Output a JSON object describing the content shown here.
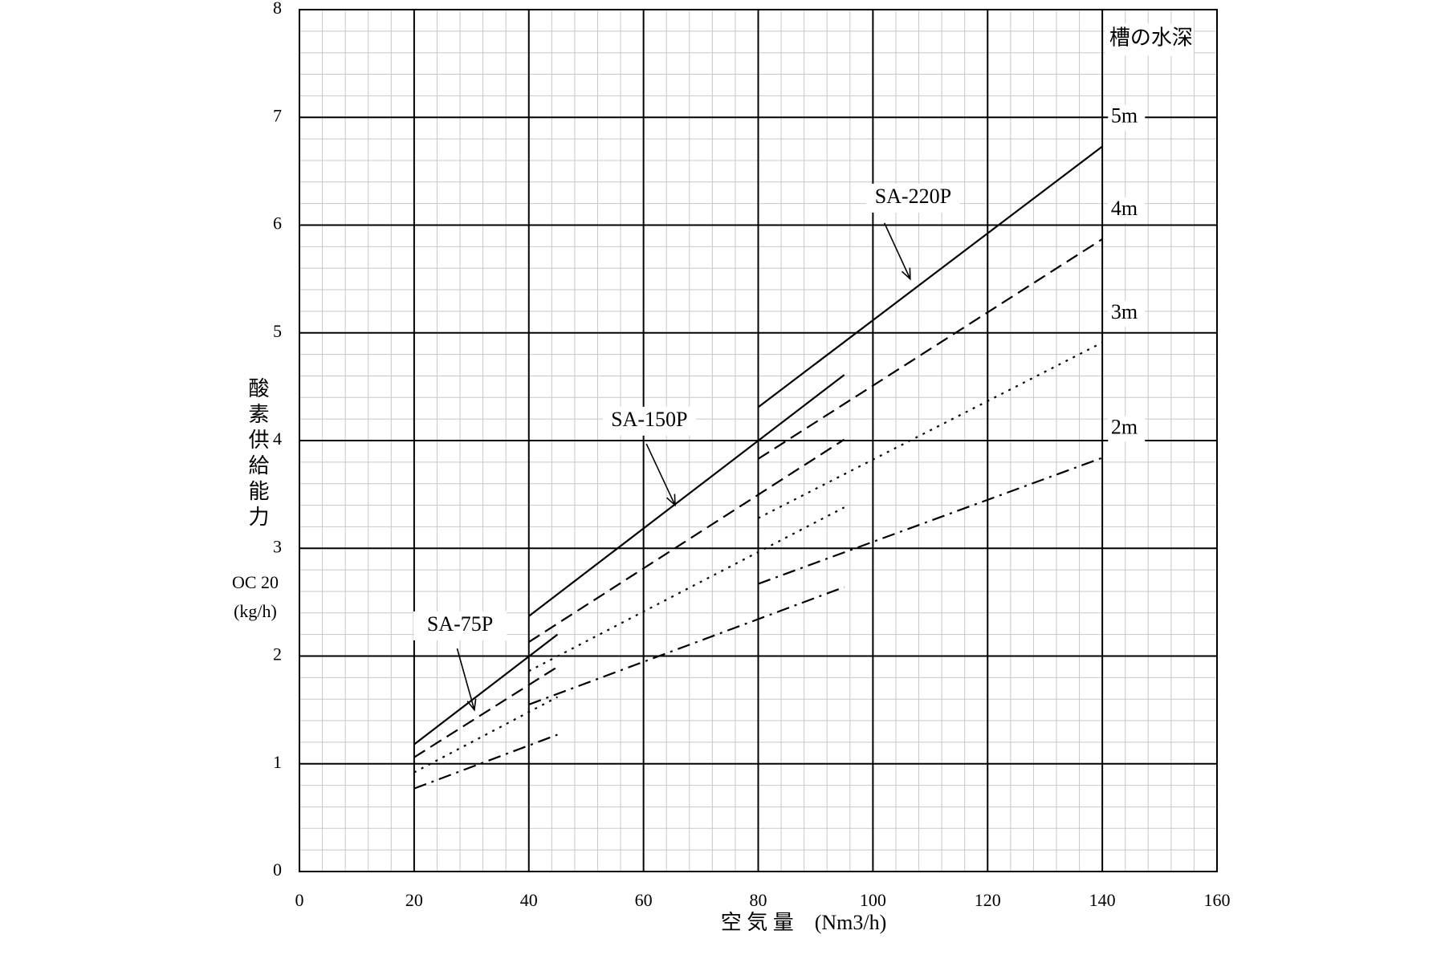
{
  "chart_data": {
    "type": "line",
    "xlabel": "空 気 量　(Nm3/h)",
    "ylabel": "酸素供給能力",
    "ylabel_sub": [
      "OC 20",
      "(kg/h)"
    ],
    "legend_title": "槽の水深",
    "xlim": [
      0,
      160
    ],
    "xticks": [
      0,
      20,
      40,
      60,
      80,
      100,
      120,
      140,
      160
    ],
    "ylim": [
      0,
      8
    ],
    "yticks": [
      0,
      1,
      2,
      3,
      4,
      5,
      6,
      7,
      8
    ],
    "grid": true,
    "xminor": 4,
    "yminor": 0.2,
    "series": [
      {
        "name": "5m",
        "dash": "solid",
        "segments": [
          {
            "x": [
              20,
              45
            ],
            "values": [
              1.18,
              2.2
            ]
          },
          {
            "x": [
              40,
              95
            ],
            "values": [
              2.37,
              4.61
            ]
          },
          {
            "x": [
              80,
              140
            ],
            "values": [
              4.31,
              6.73
            ]
          }
        ]
      },
      {
        "name": "4m",
        "dash": "dashed",
        "segments": [
          {
            "x": [
              20,
              45
            ],
            "values": [
              1.06,
              1.9
            ]
          },
          {
            "x": [
              40,
              95
            ],
            "values": [
              2.13,
              4.01
            ]
          },
          {
            "x": [
              80,
              140
            ],
            "values": [
              3.83,
              5.87
            ]
          }
        ]
      },
      {
        "name": "3m",
        "dash": "dotted",
        "segments": [
          {
            "x": [
              20,
              45
            ],
            "values": [
              0.92,
              1.62
            ]
          },
          {
            "x": [
              40,
              95
            ],
            "values": [
              1.86,
              3.38
            ]
          },
          {
            "x": [
              80,
              140
            ],
            "values": [
              3.28,
              4.91
            ]
          }
        ]
      },
      {
        "name": "2m",
        "dash": "dashdot",
        "segments": [
          {
            "x": [
              20,
              45
            ],
            "values": [
              0.77,
              1.27
            ]
          },
          {
            "x": [
              40,
              95
            ],
            "values": [
              1.55,
              2.64
            ]
          },
          {
            "x": [
              80,
              140
            ],
            "values": [
              2.67,
              3.84
            ]
          }
        ]
      }
    ],
    "annotations": [
      "SA-75P",
      "SA-150P",
      "SA-220P"
    ]
  }
}
